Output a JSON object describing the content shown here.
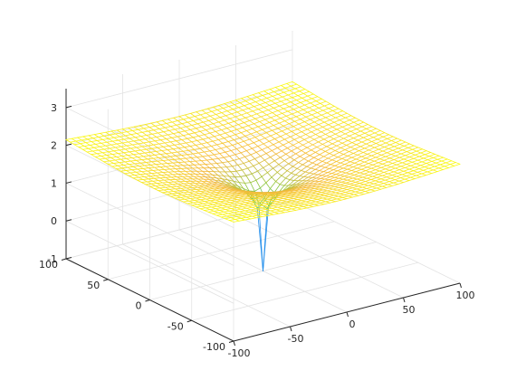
{
  "chart_data": {
    "type": "mesh3d",
    "title": "",
    "xlabel": "",
    "ylabel": "",
    "zlabel": "",
    "function": "z = log10(sqrt(x^2 + y^2))",
    "x": {
      "min": -100,
      "max": 100,
      "steps": 40
    },
    "y": {
      "min": -100,
      "max": 100,
      "steps": 40
    },
    "xlim": [
      -100,
      100
    ],
    "ylim": [
      -100,
      100
    ],
    "zlim": [
      -1,
      3.5
    ],
    "z_min_shown": -1,
    "x_ticks": [
      -100,
      -50,
      0,
      50,
      100
    ],
    "y_ticks": [
      -100,
      -50,
      0,
      50,
      100
    ],
    "z_ticks": [
      -1,
      0,
      1,
      2,
      3
    ],
    "x_tick_labels": [
      "-100",
      "-50",
      "0",
      "50",
      "100"
    ],
    "y_tick_labels": [
      "-100",
      "-50",
      "0",
      "50",
      "100"
    ],
    "z_tick_labels": [
      "-1",
      "0",
      "1",
      "2",
      "3"
    ],
    "colormap": "parula",
    "colormap_stops": [
      "#3e26a8",
      "#2f6ff3",
      "#1ca3e8",
      "#21c3a5",
      "#8cc53c",
      "#f6ba3d",
      "#f9fb15"
    ],
    "grid": true,
    "box": false
  }
}
